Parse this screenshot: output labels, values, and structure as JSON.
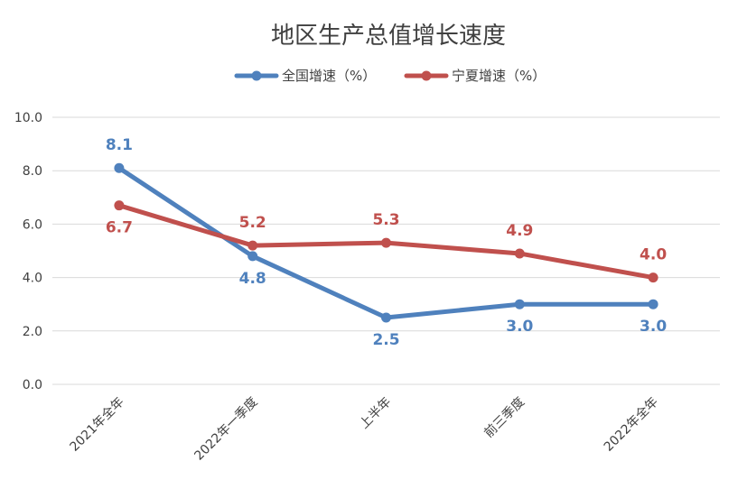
{
  "chart_data": {
    "type": "line",
    "title": "地区生产总值增长速度",
    "categories": [
      "2021年全年",
      "2022年一季度",
      "上半年",
      "前三季度",
      "2022年全年"
    ],
    "series": [
      {
        "name": "全国增速（%）",
        "color": "#4f81bd",
        "values": [
          8.1,
          4.8,
          2.5,
          3.0,
          3.0
        ],
        "labels": [
          "8.1",
          "4.8",
          "2.5",
          "3.0",
          "3.0"
        ]
      },
      {
        "name": "宁夏增速（%）",
        "color": "#c0504d",
        "values": [
          6.7,
          5.2,
          5.3,
          4.9,
          4.0
        ],
        "labels": [
          "6.7",
          "5.2",
          "5.3",
          "4.9",
          "4.0"
        ]
      }
    ],
    "yticks": [
      "0.0",
      "2.0",
      "4.0",
      "6.0",
      "8.0",
      "10.0"
    ],
    "ylim": [
      0,
      10
    ],
    "grid": true,
    "legend_position": "top"
  }
}
